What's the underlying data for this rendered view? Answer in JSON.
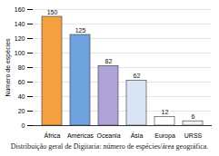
{
  "chart_data": {
    "type": "bar",
    "caption": "Distribuição geral de Digitaria: número de espécies/área geográfica.",
    "y_label": "Número de espécies",
    "categories": [
      "África",
      "Américas",
      "Oceania",
      "Ásia",
      "Europa",
      "URSS"
    ],
    "values": [
      150,
      125,
      82,
      62,
      12,
      6
    ],
    "colors": [
      "#f5a040",
      "#6fa3dd",
      "#b0a3d8",
      "#dbe6f5",
      "#ffffff",
      "#f2f2f2"
    ],
    "ylim": [
      0,
      160
    ],
    "yticks": [
      0,
      20,
      40,
      60,
      80,
      100,
      120,
      140,
      160
    ],
    "grid": true,
    "data_labels": true
  }
}
